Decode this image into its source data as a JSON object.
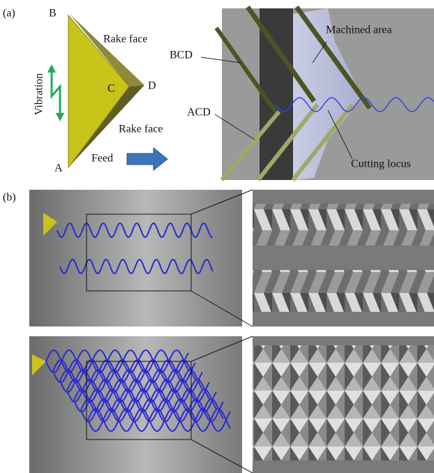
{
  "panel_a": {
    "label": "(a)",
    "tool": {
      "vertex_b": "B",
      "vertex_c": "C",
      "vertex_d": "D",
      "vertex_a": "A",
      "rake_face_top": "Rake face",
      "rake_face_bottom": "Rake face",
      "vibration": "Vibration",
      "feed": "Feed"
    },
    "cutting": {
      "bcd": "BCD",
      "acd": "ACD",
      "machined_area": "Machined area",
      "cutting_locus": "Cutting locus"
    }
  },
  "panel_b": {
    "label": "(b)"
  }
}
